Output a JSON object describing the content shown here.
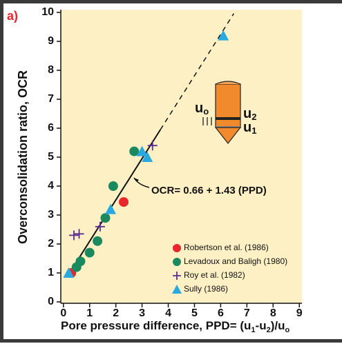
{
  "chart_data": {
    "type": "scatter",
    "panel_label": "a)",
    "ylabel": "Overconsolidation ratio, OCR",
    "xlabel_parts": [
      "Pore pressure difference, PPD= (u",
      "1",
      "-u",
      "2",
      ")/u",
      "o"
    ],
    "annotation": "OCR= 0.66 + 1.43 (PPD)",
    "probe_labels": [
      {
        "base": "u",
        "sub": "o"
      },
      {
        "base": "u",
        "sub": "2"
      },
      {
        "base": "u",
        "sub": "1"
      }
    ],
    "xlim": [
      -0.1,
      9.1
    ],
    "ylim": [
      0,
      10
    ],
    "xticks": [
      0,
      1,
      2,
      3,
      4,
      5,
      6,
      7,
      8,
      9
    ],
    "yticks": [
      0,
      1,
      2,
      3,
      4,
      5,
      6,
      7,
      8,
      9,
      10
    ],
    "fit_line": {
      "solid": {
        "x": [
          0.2,
          3.7
        ],
        "y": [
          0.95,
          5.95
        ]
      },
      "dashed": {
        "x": [
          3.7,
          6.5
        ],
        "y": [
          5.95,
          9.96
        ]
      }
    },
    "series": [
      {
        "name": "Robertson et al. (1986)",
        "color": "#e8262b",
        "marker": "circle",
        "x": [
          0.3,
          2.3
        ],
        "values": [
          1.0,
          3.45
        ]
      },
      {
        "name": "Levadoux and Baligh (1980)",
        "color": "#1a8a5e",
        "marker": "circle",
        "x": [
          0.5,
          0.65,
          1.0,
          1.3,
          1.6,
          1.9,
          2.7
        ],
        "values": [
          1.2,
          1.4,
          1.7,
          2.1,
          2.9,
          4.0,
          5.2
        ]
      },
      {
        "name": "Roy et al. (1982)",
        "color": "#5b2c8f",
        "marker": "plus",
        "x": [
          0.4,
          0.6,
          1.4,
          3.4
        ],
        "values": [
          2.3,
          2.35,
          2.6,
          5.4
        ]
      },
      {
        "name": "Sully (1986)",
        "color": "#2aa9e0",
        "marker": "triangle",
        "x": [
          0.2,
          1.8,
          3.0,
          3.2,
          6.1
        ],
        "values": [
          1.0,
          3.2,
          5.2,
          5.0,
          9.2
        ]
      }
    ]
  }
}
